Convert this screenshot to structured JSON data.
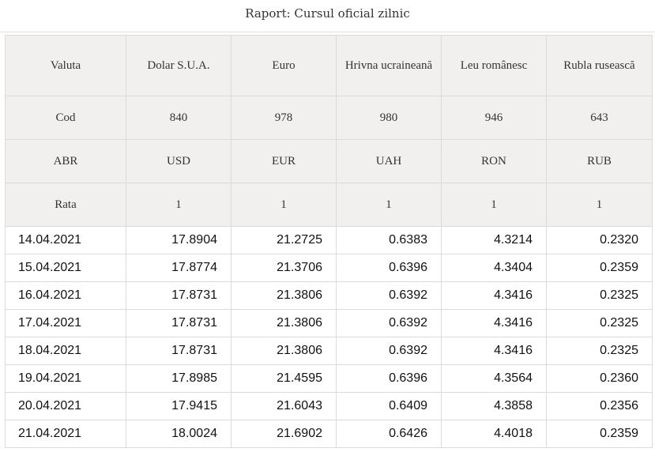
{
  "report": {
    "title": "Raport: Cursul oficial zilnic"
  },
  "table": {
    "header": {
      "names": {
        "label": "Valuta",
        "cells": [
          "Dolar S.U.A.",
          "Euro",
          "Hrivna ucraineană",
          "Leu românesc",
          "Rubla rusească"
        ]
      },
      "codes": {
        "label": "Cod",
        "cells": [
          "840",
          "978",
          "980",
          "946",
          "643"
        ]
      },
      "abbr": {
        "label": "ABR",
        "cells": [
          "USD",
          "EUR",
          "UAH",
          "RON",
          "RUB"
        ]
      },
      "rate": {
        "label": "Rata",
        "cells": [
          "1",
          "1",
          "1",
          "1",
          "1"
        ]
      }
    },
    "rows": [
      {
        "date": "14.04.2021",
        "values": [
          "17.8904",
          "21.2725",
          "0.6383",
          "4.3214",
          "0.2320"
        ]
      },
      {
        "date": "15.04.2021",
        "values": [
          "17.8774",
          "21.3706",
          "0.6396",
          "4.3404",
          "0.2359"
        ]
      },
      {
        "date": "16.04.2021",
        "values": [
          "17.8731",
          "21.3806",
          "0.6392",
          "4.3416",
          "0.2325"
        ]
      },
      {
        "date": "17.04.2021",
        "values": [
          "17.8731",
          "21.3806",
          "0.6392",
          "4.3416",
          "0.2325"
        ]
      },
      {
        "date": "18.04.2021",
        "values": [
          "17.8731",
          "21.3806",
          "0.6392",
          "4.3416",
          "0.2325"
        ]
      },
      {
        "date": "19.04.2021",
        "values": [
          "17.8985",
          "21.4595",
          "0.6396",
          "4.3564",
          "0.2360"
        ]
      },
      {
        "date": "20.04.2021",
        "values": [
          "17.9415",
          "21.6043",
          "0.6409",
          "4.3858",
          "0.2356"
        ]
      },
      {
        "date": "21.04.2021",
        "values": [
          "18.0024",
          "21.6902",
          "0.6426",
          "4.4018",
          "0.2359"
        ]
      }
    ]
  }
}
